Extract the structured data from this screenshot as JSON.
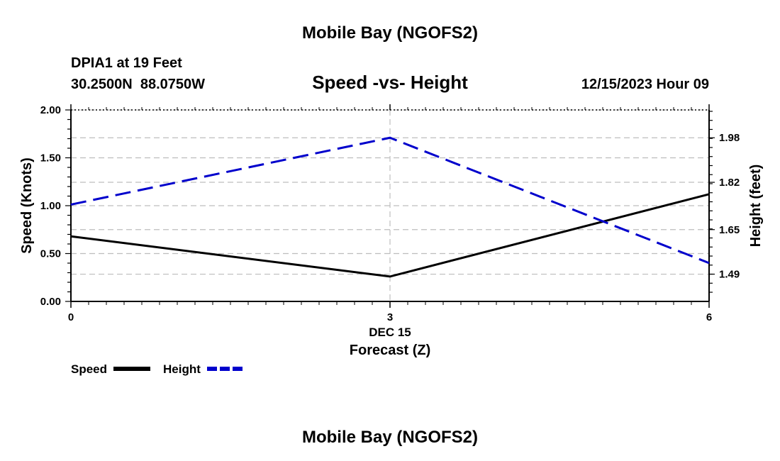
{
  "page": {
    "title": "Mobile Bay (NGOFS2)",
    "footer_title": "Mobile Bay (NGOFS2)",
    "station_label": "DPIA1 at 19 Feet",
    "coordinates": "30.2500N  88.0750W",
    "timestamp": "12/15/2023 Hour 09"
  },
  "chart_data": {
    "type": "line",
    "title": "Speed -vs- Height",
    "xlabel": "Forecast (Z)",
    "x_date_label": "DEC 15",
    "ylabel_left": "Speed (Knots)",
    "ylabel_right": "Height (feet)",
    "x": [
      0,
      3,
      6
    ],
    "xlim": [
      0,
      6
    ],
    "x_ticks": [
      "0",
      "3",
      "6"
    ],
    "ylim_left": [
      0,
      2.0
    ],
    "y_ticks_left": [
      "0.00",
      "0.50",
      "1.00",
      "1.50",
      "2.00"
    ],
    "ylim_right": [
      1.392,
      2.08
    ],
    "y_ticks_right": [
      {
        "value": 1.49,
        "label": "1.49"
      },
      {
        "value": 1.65,
        "label": "1.65"
      },
      {
        "value": 1.82,
        "label": "1.82"
      },
      {
        "value": 1.98,
        "label": "1.98"
      }
    ],
    "grid": true,
    "series": [
      {
        "name": "Speed",
        "axis": "left",
        "values": [
          0.68,
          0.26,
          1.12
        ],
        "color": "#000000",
        "dashed": false
      },
      {
        "name": "Height",
        "axis": "right",
        "values": [
          1.74,
          1.98,
          1.53
        ],
        "color": "#0000cc",
        "dashed": true
      }
    ],
    "legend_placement": "bottom-left"
  }
}
